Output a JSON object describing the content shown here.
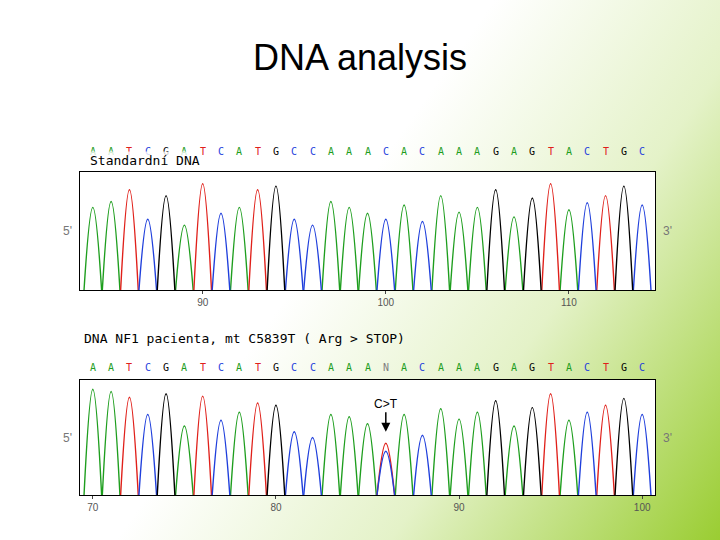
{
  "title": "DNA analysis",
  "chart_data": [
    {
      "type": "chromatogram",
      "title": "Standardní DNA",
      "bases": [
        "A",
        "A",
        "T",
        "C",
        "G",
        "A",
        "T",
        "C",
        "A",
        "T",
        "G",
        "C",
        "C",
        "A",
        "A",
        "A",
        "C",
        "A",
        "C",
        "A",
        "A",
        "A",
        "G",
        "A",
        "G",
        "T",
        "A",
        "C",
        "T",
        "G",
        "C"
      ],
      "x": [
        84,
        85,
        86,
        87,
        88,
        89,
        90,
        91,
        92,
        93,
        94,
        95,
        96,
        97,
        98,
        99,
        100,
        101,
        102,
        103,
        104,
        105,
        106,
        107,
        108,
        109,
        110,
        111,
        112,
        113,
        114
      ],
      "values": [
        70,
        75,
        85,
        60,
        80,
        55,
        90,
        65,
        70,
        85,
        88,
        60,
        55,
        75,
        70,
        65,
        60,
        72,
        58,
        80,
        66,
        70,
        85,
        62,
        78,
        90,
        68,
        74,
        80,
        88,
        72
      ],
      "xlim": [
        83.3,
        114.7
      ],
      "xticks": [
        90,
        100,
        110
      ],
      "ylim": [
        0,
        100
      ],
      "yticks": [],
      "tick_labels": "x",
      "base_colors": {
        "A": "#1e9e1e",
        "C": "#1f3fdc",
        "G": "#000000",
        "T": "#e0201a",
        "N": "#808080"
      },
      "ends": [
        "5'",
        "3'"
      ]
    },
    {
      "type": "chromatogram",
      "title": "DNA NF1 pacienta, mt C5839T ( Arg > STOP)",
      "bases": [
        "A",
        "A",
        "T",
        "C",
        "G",
        "A",
        "T",
        "C",
        "A",
        "T",
        "G",
        "C",
        "C",
        "A",
        "A",
        "A",
        "N",
        "A",
        "C",
        "A",
        "A",
        "A",
        "G",
        "A",
        "G",
        "T",
        "A",
        "C",
        "T",
        "G",
        "C"
      ],
      "x": [
        70,
        71,
        72,
        73,
        74,
        75,
        76,
        77,
        78,
        79,
        80,
        81,
        82,
        83,
        84,
        85,
        86,
        87,
        88,
        89,
        90,
        91,
        92,
        93,
        94,
        95,
        96,
        97,
        98,
        99,
        100
      ],
      "values": [
        92,
        90,
        85,
        70,
        88,
        60,
        86,
        65,
        72,
        80,
        78,
        55,
        50,
        70,
        68,
        62,
        null,
        70,
        52,
        75,
        66,
        72,
        82,
        60,
        76,
        88,
        65,
        72,
        78,
        84,
        70
      ],
      "secondary_peaks": [
        {
          "x": 86,
          "base": "C",
          "value": 38
        },
        {
          "x": 86,
          "base": "T",
          "value": 45
        }
      ],
      "xlim": [
        69.3,
        100.7
      ],
      "xticks": [
        70,
        80,
        90,
        100
      ],
      "ylim": [
        0,
        100
      ],
      "yticks": [],
      "tick_labels": "x",
      "base_colors": {
        "A": "#1e9e1e",
        "C": "#1f3fdc",
        "G": "#000000",
        "T": "#e0201a",
        "N": "#808080"
      },
      "ends": [
        "5'",
        "3'"
      ],
      "annotations": [
        {
          "x": 86,
          "text": "C>T"
        }
      ]
    }
  ]
}
